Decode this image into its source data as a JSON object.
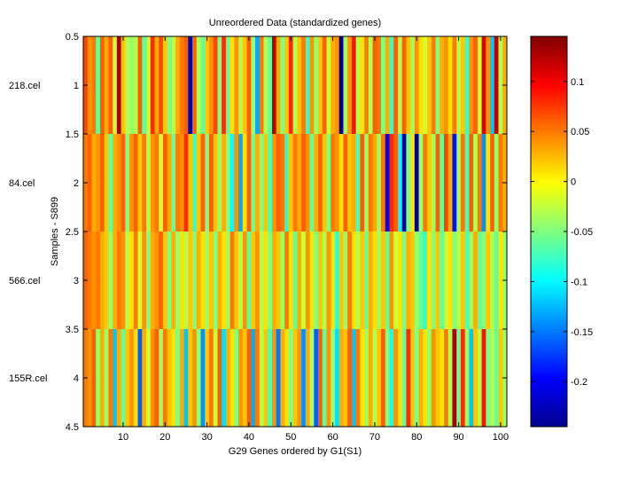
{
  "chart_data": {
    "type": "heatmap",
    "title": "Unreordered Data (standardized genes)",
    "xlabel": "G29 Genes ordered by G1(S1)",
    "ylabel": "Samples - S899",
    "sample_labels": [
      "218.cel",
      "84.cel",
      "566.cel",
      "155R.cel"
    ],
    "xlim": [
      0.5,
      101.5
    ],
    "ylim": [
      0.5,
      4.5
    ],
    "x_ticks": [
      10,
      20,
      30,
      40,
      50,
      60,
      70,
      80,
      90,
      100
    ],
    "y_ticks": [
      0.5,
      1,
      1.5,
      2,
      2.5,
      3,
      3.5,
      4,
      4.5
    ],
    "colorbar": {
      "colormap": "jet",
      "clim": [
        -0.245,
        0.145
      ],
      "ticks": [
        0.1,
        0.05,
        0,
        -0.05,
        -0.1,
        -0.15,
        -0.2
      ]
    },
    "values": [
      [
        0.07,
        0.04,
        0.05,
        -0.06,
        0.06,
        0.03,
        0.06,
        -0.02,
        0.13,
        0.02,
        -0.03,
        -0.04,
        -0.03,
        0.06,
        -0.06,
        -0.02,
        0.08,
        0.03,
        0.07,
        0.02,
        -0.05,
        -0.03,
        0.03,
        0.05,
        0.06,
        -0.23,
        0.06,
        -0.03,
        -0.06,
        0.02,
        0.04,
        0.07,
        -0.05,
        0.08,
        -0.06,
        0.01,
        0.04,
        -0.03,
        0.02,
        0.06,
        -0.04,
        -0.13,
        0.05,
        -0.03,
        -0.06,
        0.12,
        0.03,
        -0.05,
        0.02,
        0.08,
        -0.03,
        0.02,
        0.05,
        -0.08,
        0.04,
        -0.04,
        0.02,
        0.06,
        -0.02,
        0.03,
        0.04,
        -0.24,
        -0.04,
        0.04,
        0.09,
        -0.03,
        0.01,
        0.05,
        -0.03,
        0.06,
        0.05,
        -0.05,
        0.03,
        -0.08,
        0.06,
        -0.03,
        0.06,
        0.02,
        -0.04,
        0.04,
        0.01,
        -0.02,
        0.02,
        0.05,
        -0.05,
        0.03,
        0.04,
        0.01,
        0.05,
        -0.03,
        0.02,
        -0.08,
        0.04,
        0.06,
        -0.02,
        0.11,
        0.04,
        -0.12,
        0.12,
        -0.03,
        0.03
      ],
      [
        0.05,
        0.06,
        0.03,
        0.04,
        0.06,
        0.02,
        -0.06,
        0.03,
        0.04,
        0.06,
        -0.05,
        0.04,
        0.06,
        0.02,
        0.05,
        -0.03,
        0.04,
        0.05,
        -0.02,
        0.06,
        0.03,
        -0.06,
        0.05,
        0.04,
        0.08,
        0.02,
        -0.08,
        0.02,
        0.06,
        -0.05,
        0.06,
        0.02,
        -0.04,
        0.03,
        -0.05,
        -0.1,
        0.04,
        -0.13,
        0.01,
        0.06,
        -0.06,
        0.03,
        -0.05,
        0.02,
        -0.07,
        0.04,
        0.06,
        0.05,
        -0.08,
        0.02,
        0.05,
        0.03,
        0.06,
        0.04,
        -0.06,
        0.03,
        0.06,
        0.02,
        -0.05,
        0.05,
        0.04,
        0.01,
        0.06,
        0.02,
        0.03,
        -0.07,
        0.06,
        -0.04,
        0.05,
        0.03,
        -0.04,
        0.05,
        -0.2,
        0.08,
        0.06,
        -0.1,
        -0.23,
        -0.05,
        0.01,
        -0.24,
        -0.04,
        0.05,
        0.02,
        -0.04,
        0.06,
        -0.06,
        0.07,
        0.03,
        -0.19,
        -0.04,
        0.05,
        -0.07,
        0.06,
        -0.03,
        0.05,
        -0.14,
        0.01,
        0.06,
        -0.04,
        0.05,
        0.03
      ],
      [
        0.06,
        0.05,
        0.04,
        0.05,
        0.03,
        0.02,
        -0.04,
        0.03,
        0.05,
        0.04,
        -0.03,
        0.01,
        0.05,
        -0.02,
        0.04,
        -0.05,
        0.03,
        0.04,
        0.06,
        0.02,
        -0.05,
        0.03,
        -0.04,
        0.01,
        -0.03,
        0.02,
        -0.05,
        0.03,
        0.01,
        -0.04,
        0.02,
        -0.05,
        0.03,
        0.01,
        -0.04,
        0.05,
        0.02,
        -0.03,
        0.04,
        -0.06,
        0.02,
        0.04,
        -0.03,
        0.01,
        -0.05,
        0.03,
        0.02,
        -0.04,
        0.05,
        0.01,
        -0.06,
        0.03,
        -0.02,
        0.04,
        0.01,
        -0.05,
        0.02,
        -0.03,
        0.04,
        0.01,
        -0.08,
        0.02,
        -0.04,
        0.05,
        0.01,
        -0.03,
        0.02,
        -0.06,
        0.03,
        0.01,
        -0.04,
        0.02,
        -0.06,
        0.04,
        -0.02,
        0.01,
        -0.05,
        0.03,
        0.02,
        -0.04,
        -0.06,
        -0.08,
        0.01,
        -0.05,
        0.02,
        -0.06,
        -0.02,
        0.01,
        -0.05,
        -0.03,
        0.02,
        -0.07,
        -0.04,
        0.03,
        -0.06,
        -0.05,
        0.02,
        -0.03,
        -0.06,
        0.01,
        -0.04
      ],
      [
        0.05,
        0.04,
        0.06,
        -0.04,
        0.03,
        -0.04,
        0.05,
        -0.12,
        0.03,
        -0.06,
        0.02,
        0.04,
        0.01,
        -0.16,
        0.03,
        -0.02,
        0.04,
        0.06,
        -0.04,
        0.05,
        0.02,
        0.01,
        -0.05,
        0.03,
        -0.12,
        0.02,
        0.04,
        -0.04,
        -0.14,
        0.02,
        0.05,
        -0.02,
        0.06,
        -0.11,
        0.03,
        0.01,
        -0.05,
        0.04,
        0.02,
        0.06,
        -0.13,
        0.05,
        -0.03,
        0.02,
        -0.07,
        0.04,
        -0.15,
        0.03,
        0.01,
        -0.05,
        0.02,
        0.04,
        -0.14,
        0.03,
        -0.03,
        -0.16,
        0.06,
        -0.06,
        0.04,
        -0.04,
        -0.11,
        0.03,
        0.02,
        0.06,
        -0.12,
        0.05,
        0.01,
        -0.04,
        0.03,
        -0.03,
        0.02,
        0.06,
        -0.05,
        -0.09,
        0.04,
        0.01,
        -0.06,
        0.08,
        0.02,
        -0.05,
        0.03,
        0.01,
        -0.04,
        0.04,
        0.02,
        0.01,
        0.05,
        -0.03,
        0.13,
        -0.06,
        0.08,
        -0.04,
        -0.12,
        0.02,
        -0.03,
        0.09,
        -0.05,
        -0.03,
        -0.06,
        0.02,
        -0.04
      ]
    ]
  }
}
